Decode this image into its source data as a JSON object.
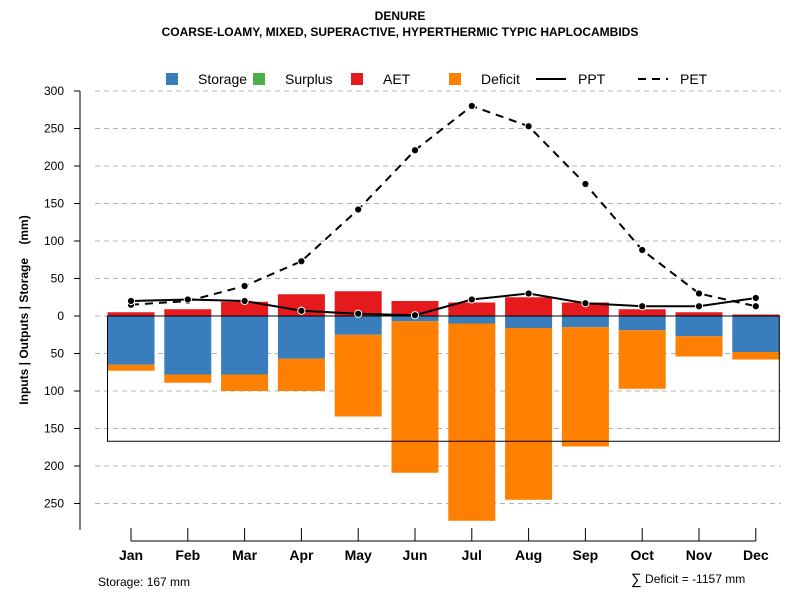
{
  "chart_data": {
    "type": "bar",
    "title": "DENURE",
    "subtitle": "COARSE-LOAMY, MIXED, SUPERACTIVE, HYPERTHERMIC TYPIC HAPLOCAMBIDS",
    "ylabel": "Inputs | Outputs | Storage    (mm)",
    "xlabel": "",
    "ylim": [
      -285,
      300
    ],
    "y_ticks": [
      300,
      250,
      200,
      150,
      100,
      50,
      0,
      -50,
      -100,
      -150,
      -200,
      -250
    ],
    "y_tick_labels": [
      "300",
      "250",
      "200",
      "150",
      "100",
      "50",
      "0",
      "50",
      "100",
      "150",
      "200",
      "250"
    ],
    "grid": true,
    "legend_position": "top",
    "categories": [
      "Jan",
      "Feb",
      "Mar",
      "Apr",
      "May",
      "Jun",
      "Jul",
      "Aug",
      "Sep",
      "Oct",
      "Nov",
      "Dec"
    ],
    "legend": [
      {
        "label": "Storage",
        "kind": "box",
        "color": "#3a7dbc"
      },
      {
        "label": "Surplus",
        "kind": "box",
        "color": "#4daf4a"
      },
      {
        "label": "AET",
        "kind": "box",
        "color": "#e41a1c"
      },
      {
        "label": "Deficit",
        "kind": "box",
        "color": "#ff7f00"
      },
      {
        "label": "PPT",
        "kind": "solid-line",
        "color": "#000000"
      },
      {
        "label": "PET",
        "kind": "dashed-line",
        "color": "#000000"
      }
    ],
    "series": [
      {
        "name": "Storage",
        "color": "#3a7dbc",
        "values": [
          -65,
          -78,
          -78,
          -57,
          -25,
          -7,
          -10,
          -16,
          -15,
          -19,
          -27,
          -48
        ]
      },
      {
        "name": "Surplus",
        "color": "#4daf4a",
        "values": [
          0,
          0,
          0,
          0,
          0,
          0,
          0,
          0,
          0,
          0,
          0,
          0
        ]
      },
      {
        "name": "AET",
        "color": "#e41a1c",
        "values": [
          5,
          9,
          19,
          29,
          33,
          20,
          18,
          25,
          18,
          9,
          5,
          2
        ]
      },
      {
        "name": "Deficit",
        "color": "#ff7f00",
        "values": [
          -8,
          -11,
          -22,
          -43,
          -109,
          -202,
          -263,
          -229,
          -159,
          -78,
          -27,
          -10
        ]
      },
      {
        "name": "PPT",
        "color": "#000000",
        "line": "solid",
        "values": [
          20,
          22,
          20,
          7,
          3,
          1,
          22,
          30,
          17,
          13,
          13,
          24
        ]
      },
      {
        "name": "PET",
        "color": "#000000",
        "line": "dashed",
        "values": [
          15,
          20,
          40,
          73,
          142,
          221,
          280,
          253,
          176,
          88,
          30,
          13
        ]
      }
    ],
    "storage_capacity": 167
  },
  "footer": {
    "storage_note": "Storage: 167 mm",
    "deficit_sigma": "∑",
    "deficit_note": "Deficit = -1157 mm"
  }
}
